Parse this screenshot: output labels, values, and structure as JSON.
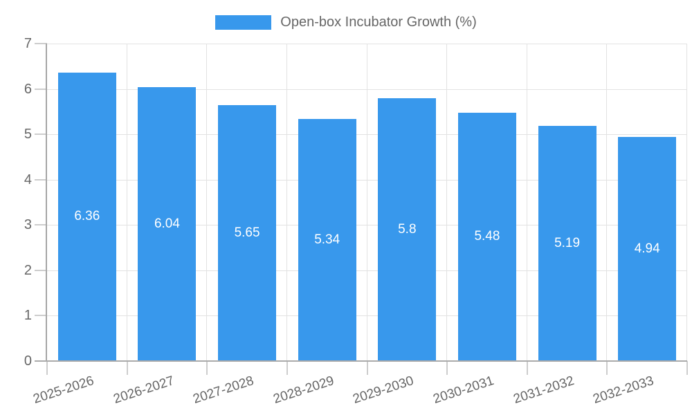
{
  "chart_data": {
    "type": "bar",
    "title": "Open-box Incubator Growth (%)",
    "legend_position": "top",
    "categories": [
      "2025-2026",
      "2026-2027",
      "2027-2028",
      "2028-2029",
      "2029-2030",
      "2030-2031",
      "2031-2032",
      "2032-2033"
    ],
    "values": [
      6.36,
      6.04,
      5.65,
      5.34,
      5.8,
      5.48,
      5.19,
      4.94
    ],
    "xlabel": "",
    "ylabel": "",
    "ylim": [
      0,
      7
    ],
    "yticks": [
      0,
      1,
      2,
      3,
      4,
      5,
      6,
      7
    ],
    "grid": true,
    "colors": {
      "bar": "#3898ec",
      "grid": "#e2e2e2",
      "tick": "#cdcdcd",
      "axis": "#a6a6a6",
      "text": "#666666",
      "value_label": "#ffffff",
      "background": "#ffffff"
    }
  }
}
